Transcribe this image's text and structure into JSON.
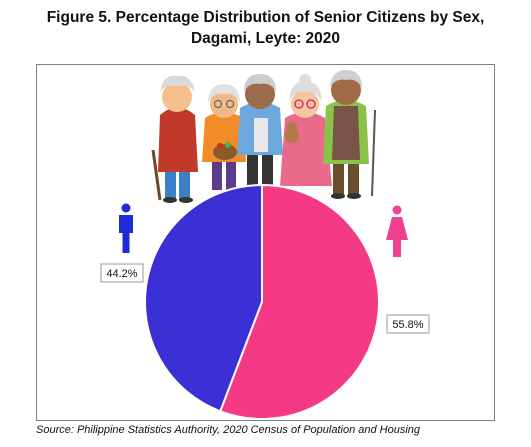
{
  "title_line1": "Figure 5. Percentage Distribution of Senior Citizens by Sex,",
  "title_line2": "Dagami, Leyte: 2020",
  "source": "Source: Philippine Statistics Authority, 2020 Census of Population and Housing",
  "icons": {
    "male": "male-figure-icon",
    "female": "female-figure-icon",
    "illustration": "senior-citizens-illustration"
  },
  "colors": {
    "male": "#3b2fd6",
    "female": "#f43a84",
    "label_border": "#9a9a9a"
  },
  "chart_data": {
    "type": "pie",
    "title": "Figure 5. Percentage Distribution of Senior Citizens by Sex, Dagami, Leyte: 2020",
    "categories": [
      "Male",
      "Female"
    ],
    "values": [
      44.2,
      55.8
    ],
    "labels": [
      "44.2%",
      "55.8%"
    ],
    "legend": "none"
  }
}
